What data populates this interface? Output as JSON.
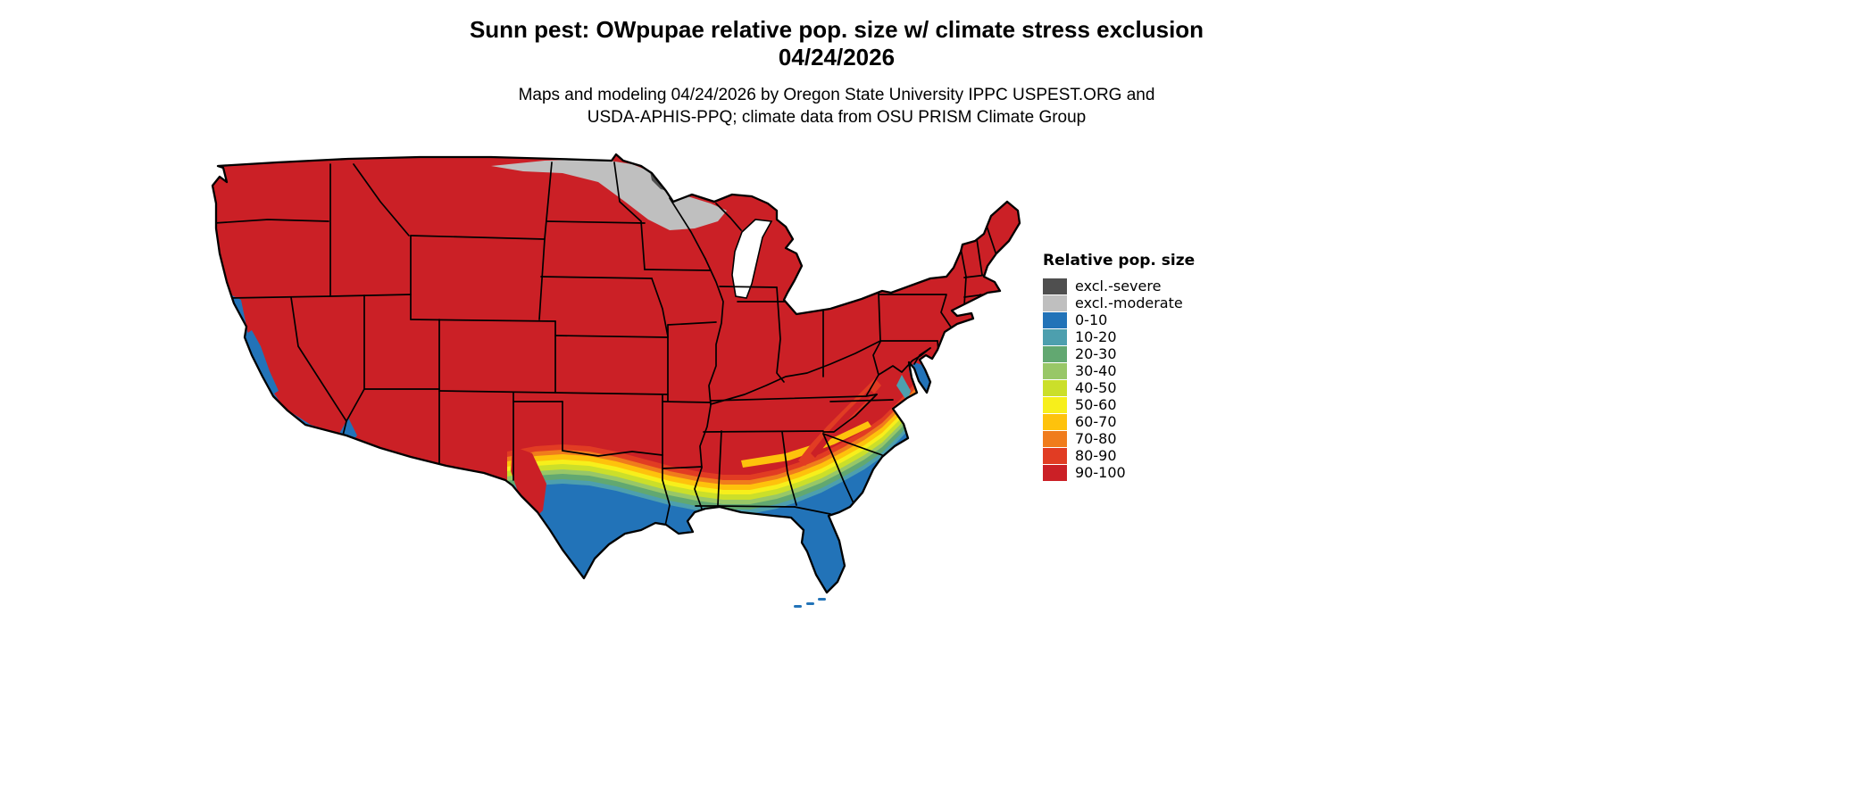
{
  "header": {
    "title_line1": "Sunn pest: OWpupae relative pop. size w/ climate stress exclusion",
    "title_line2": "04/24/2026",
    "subtitle_line1": "Maps and modeling 04/24/2026 by Oregon State University IPPC USPEST.ORG and",
    "subtitle_line2": "USDA-APHIS-PPQ; climate data from OSU PRISM Climate Group"
  },
  "legend": {
    "title": "Relative pop. size",
    "items": [
      {
        "label": "excl.-severe",
        "color": "#4F4F4F"
      },
      {
        "label": "excl.-moderate",
        "color": "#BFBFBF"
      },
      {
        "label": "0-10",
        "color": "#2273B8"
      },
      {
        "label": "10-20",
        "color": "#4D9FAE"
      },
      {
        "label": "20-30",
        "color": "#62A871"
      },
      {
        "label": "30-40",
        "color": "#98C767"
      },
      {
        "label": "40-50",
        "color": "#CBDF2A"
      },
      {
        "label": "50-60",
        "color": "#F7EF1B"
      },
      {
        "label": "60-70",
        "color": "#FEC20C"
      },
      {
        "label": "70-80",
        "color": "#F07C1C"
      },
      {
        "label": "80-90",
        "color": "#E13C23"
      },
      {
        "label": "90-100",
        "color": "#CB2026"
      }
    ]
  }
}
